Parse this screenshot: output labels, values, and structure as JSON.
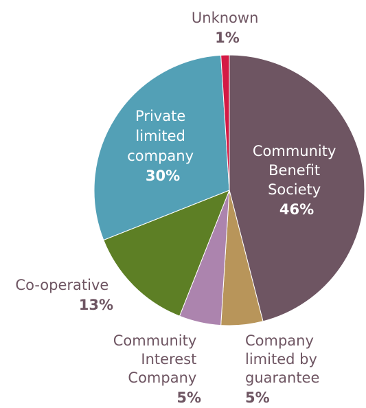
{
  "chart_data": {
    "type": "pie",
    "title": "",
    "start_angle_deg": 0,
    "direction": "clockwise",
    "slices": [
      {
        "key": "cbs",
        "label": [
          "Community",
          "Benefit",
          "Society"
        ],
        "percent_label": "46%",
        "value": 46,
        "color": "#6e5562",
        "label_color": "#ffffff",
        "label_inside": true
      },
      {
        "key": "clg",
        "label": [
          "Company",
          "limited by",
          "guarantee"
        ],
        "percent_label": "5%",
        "value": 5,
        "color": "#b8955a",
        "label_color": "#6e5562",
        "label_inside": false
      },
      {
        "key": "cic",
        "label": [
          "Community",
          "Interest",
          "Company"
        ],
        "percent_label": "5%",
        "value": 5,
        "color": "#ac84ae",
        "label_color": "#6e5562",
        "label_inside": false
      },
      {
        "key": "coop",
        "label": [
          "Co-operative"
        ],
        "percent_label": "13%",
        "value": 13,
        "color": "#5d7f25",
        "label_color": "#6e5562",
        "label_inside": false
      },
      {
        "key": "plc",
        "label": [
          "Private",
          "limited",
          "company"
        ],
        "percent_label": "30%",
        "value": 30,
        "color": "#53a0b6",
        "label_color": "#ffffff",
        "label_inside": true
      },
      {
        "key": "unknown",
        "label": [
          "Unknown"
        ],
        "percent_label": "1%",
        "value": 1,
        "color": "#d41a45",
        "label_color": "#6e5562",
        "label_inside": false
      }
    ]
  }
}
